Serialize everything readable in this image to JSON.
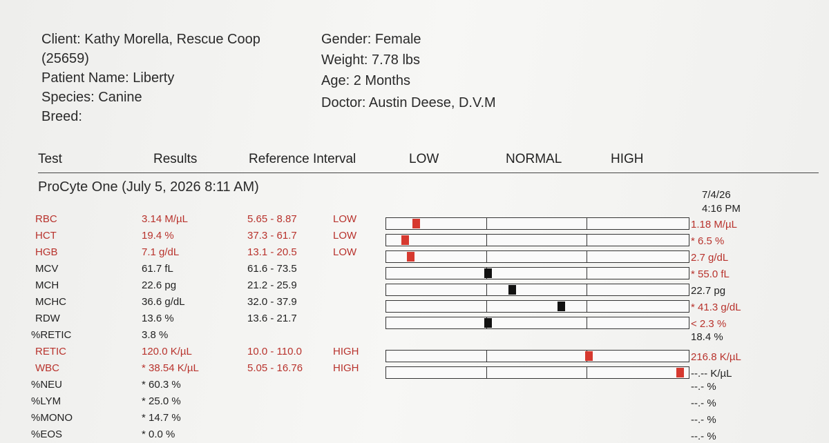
{
  "header": {
    "left": [
      "Client: Kathy Morella, Rescue Coop",
      "(25659)",
      "Patient Name: Liberty",
      "Species: Canine",
      "Breed:"
    ],
    "right": [
      "Gender: Female",
      "Weight: 7.78 lbs",
      "Age: 2 Months",
      "Doctor: Austin Deese, D.V.M"
    ]
  },
  "table": {
    "columns": [
      "Test",
      "Results",
      "Reference Interval",
      "LOW",
      "NORMAL",
      "HIGH"
    ],
    "section": "ProCyte One (July 5, 2026 8:11 AM)",
    "previous_date": "7/4/26",
    "previous_time": "4:16 PM",
    "rows": [
      {
        "test": "RBC",
        "result": "3.14 M/µL",
        "reference": "5.65 - 8.87",
        "flag": "LOW",
        "previous": "1.18 M/µL",
        "color": "#b8322c",
        "previous_color": "#b8322c"
      },
      {
        "test": "HCT",
        "result": "19.4 %",
        "reference": "37.3 - 61.7",
        "flag": "LOW",
        "previous": "* 6.5 %",
        "color": "#b8322c",
        "previous_color": "#b8322c"
      },
      {
        "test": "HGB",
        "result": "7.1 g/dL",
        "reference": "13.1 - 20.5",
        "flag": "LOW",
        "previous": "2.7 g/dL",
        "color": "#b8322c",
        "previous_color": "#b8322c"
      },
      {
        "test": "MCV",
        "result": "61.7 fL",
        "reference": "61.6 - 73.5",
        "previous": "* 55.0 fL",
        "color": "#222222",
        "previous_color": "#b8322c"
      },
      {
        "test": "MCH",
        "result": "22.6 pg",
        "reference": "21.2 - 25.9",
        "previous": "22.7 pg",
        "color": "#222222",
        "previous_color": "#222222"
      },
      {
        "test": "MCHC",
        "result": "36.6 g/dL",
        "reference": "32.0 - 37.9",
        "previous": "* 41.3 g/dL",
        "color": "#222222",
        "previous_color": "#b8322c"
      },
      {
        "test": "RDW",
        "result": "13.6 %",
        "reference": "13.6 - 21.7",
        "previous": "< 2.3 %",
        "color": "#222222",
        "previous_color": "#b8322c"
      },
      {
        "test": "%RETIC",
        "result": "3.8 %",
        "previous": "18.4 %",
        "color": "#222222",
        "previous_color": "#222222"
      },
      {
        "test": "RETIC",
        "result": "120.0 K/µL",
        "reference": "10.0 - 110.0",
        "flag": "HIGH",
        "previous": "216.8 K/µL",
        "color": "#b8322c",
        "previous_color": "#b8322c"
      },
      {
        "test": "WBC",
        "result": "* 38.54 K/µL",
        "reference": "5.05 - 16.76",
        "flag": "HIGH",
        "previous": "--.-- K/µL",
        "color": "#b8322c",
        "previous_color": "#222222"
      },
      {
        "test": "%NEU",
        "result": "* 60.3 %",
        "previous": "--.- %",
        "color": "#222222",
        "previous_color": "#222222"
      },
      {
        "test": "%LYM",
        "result": "* 25.0 %",
        "previous": "--.- %",
        "color": "#222222",
        "previous_color": "#222222"
      },
      {
        "test": "%MONO",
        "result": "* 14.7 %",
        "previous": "--.- %",
        "color": "#222222",
        "previous_color": "#222222"
      },
      {
        "test": "%EOS",
        "result": "* 0.0 %",
        "previous": "--.- %",
        "color": "#222222",
        "previous_color": "#222222"
      }
    ]
  }
}
